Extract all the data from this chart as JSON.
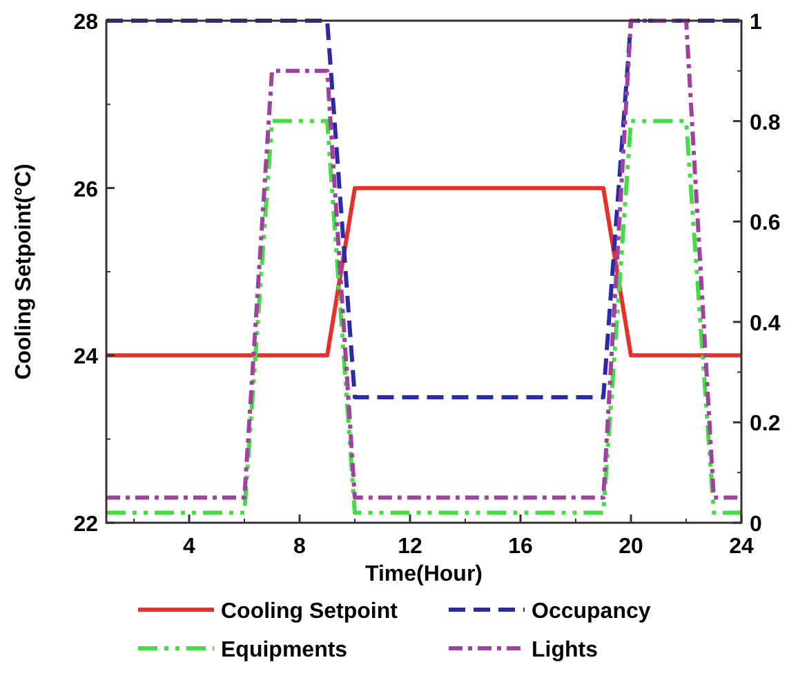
{
  "chart_data": {
    "type": "line",
    "xlabel": "Time(Hour)",
    "ylabel": "Cooling Setpoint(°C)",
    "xlim": [
      1,
      24
    ],
    "xticks": [
      4,
      8,
      12,
      16,
      20,
      24
    ],
    "ylim": [
      22,
      28
    ],
    "yticks": [
      22,
      24,
      26,
      28
    ],
    "y2lim": [
      0,
      1
    ],
    "y2ticks": [
      0,
      0.2,
      0.4,
      0.6,
      0.8,
      1
    ],
    "grid": false,
    "legend": "bottom",
    "series": [
      {
        "name": "Cooling Setpoint",
        "color": "#e8302a",
        "line_style": "solid",
        "x": [
          1,
          9,
          10,
          19,
          20,
          24
        ],
        "values": [
          24,
          24,
          26,
          26,
          24,
          24
        ]
      },
      {
        "name": "Occupancy",
        "color": "#2b2ba8",
        "line_style": "dashed",
        "axis": "y2",
        "x": [
          1,
          9,
          10,
          19,
          20,
          24
        ],
        "values": [
          1,
          1,
          0.25,
          0.25,
          1,
          1
        ]
      },
      {
        "name": "Equipments",
        "color": "#44dd44",
        "line_style": "dashed",
        "axis": "y2",
        "x": [
          1,
          6,
          7,
          9,
          10,
          19,
          20,
          22,
          23,
          24
        ],
        "values": [
          0.02,
          0.02,
          0.8,
          0.8,
          0.02,
          0.02,
          0.8,
          0.8,
          0.02,
          0.02
        ]
      },
      {
        "name": "Lights",
        "color": "#a040a0",
        "line_style": "dashed",
        "axis": "y2",
        "x": [
          1,
          6,
          7,
          9,
          10,
          19,
          20,
          22,
          23,
          24
        ],
        "values": [
          0.05,
          0.05,
          0.9,
          0.9,
          0.05,
          0.05,
          1,
          1,
          0.05,
          0.05
        ]
      }
    ]
  }
}
